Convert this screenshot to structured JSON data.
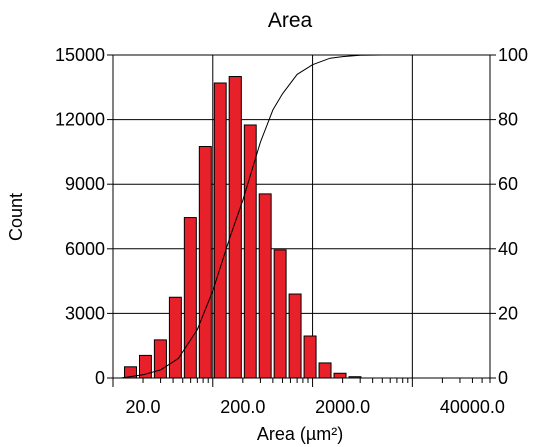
{
  "chart_data": {
    "type": "bar",
    "title": "Area",
    "xlabel": "Area (µm²)",
    "ylabel": "Count",
    "x_scale": "log",
    "xlim": [
      10,
      60000
    ],
    "ylim": [
      0,
      15000
    ],
    "y2lim": [
      0,
      100
    ],
    "grid": true,
    "x_tick_labels": [
      "20.0",
      "200.0",
      "2000.0",
      "40000.0"
    ],
    "y_tick_labels": [
      "0",
      "3000",
      "6000",
      "9000",
      "12000",
      "15000"
    ],
    "y2_tick_labels": [
      "0",
      "20",
      "40",
      "60",
      "80",
      "100"
    ],
    "series": [
      {
        "type": "bar",
        "color": "#e8202a",
        "bins": [
          {
            "x0": 12.6,
            "x1": 17.8,
            "value": 520
          },
          {
            "x0": 17.8,
            "x1": 25.1,
            "value": 1050
          },
          {
            "x0": 25.1,
            "x1": 35.5,
            "value": 1770
          },
          {
            "x0": 35.5,
            "x1": 50.1,
            "value": 3750
          },
          {
            "x0": 50.1,
            "x1": 70.8,
            "value": 7450
          },
          {
            "x0": 70.8,
            "x1": 100,
            "value": 10750
          },
          {
            "x0": 100,
            "x1": 141,
            "value": 13700
          },
          {
            "x0": 141,
            "x1": 200,
            "value": 14000
          },
          {
            "x0": 200,
            "x1": 282,
            "value": 11750
          },
          {
            "x0": 282,
            "x1": 398,
            "value": 8550
          },
          {
            "x0": 398,
            "x1": 562,
            "value": 5950
          },
          {
            "x0": 562,
            "x1": 794,
            "value": 3900
          },
          {
            "x0": 794,
            "x1": 1122,
            "value": 1950
          },
          {
            "x0": 1122,
            "x1": 1585,
            "value": 700
          },
          {
            "x0": 1585,
            "x1": 2239,
            "value": 220
          },
          {
            "x0": 2239,
            "x1": 3162,
            "value": 60
          }
        ]
      },
      {
        "type": "line",
        "axis": "right",
        "color": "#000000",
        "x": [
          12,
          20,
          30,
          45,
          70,
          100,
          150,
          200,
          300,
          400,
          500,
          700,
          1000,
          1500,
          2000,
          3000,
          5000,
          60000
        ],
        "y": [
          0,
          1,
          2.5,
          6,
          15,
          27,
          44,
          55,
          73,
          83,
          88,
          94,
          97,
          99,
          99.5,
          99.9,
          100,
          100
        ]
      }
    ]
  }
}
